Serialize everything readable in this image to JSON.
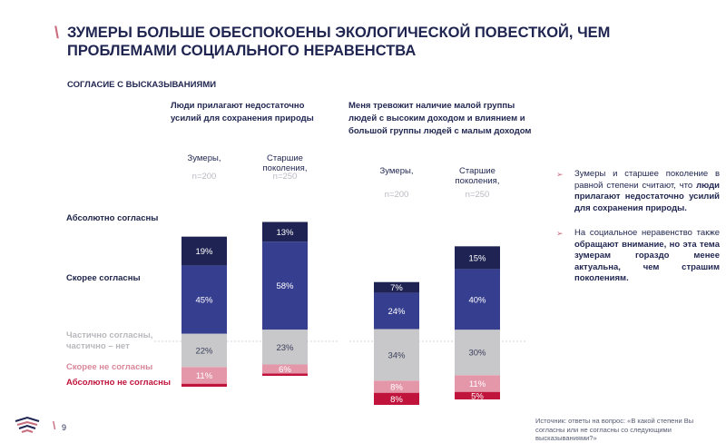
{
  "header": {
    "title": "ЗУМЕРЫ БОЛЬШЕ ОБЕСПОКОЕНЫ ЭКОЛОГИЧЕСКОЙ ПОВЕСТКОЙ, ЧЕМ ПРОБЛЕМАМИ СОЦИАЛЬНОГО НЕРАВЕНСТВА",
    "subtitle": "СОГЛАСИЕ С ВЫСКАЗЫВАНИЯМИ"
  },
  "row_labels": [
    "Абсолютно согласны",
    "Скорее согласны",
    "Частично согласны, частично – нет",
    "Скорее не согласны",
    "Абсолютно не согласны"
  ],
  "colors": {
    "absolutely_agree": "#1e2353",
    "rather_agree": "#363e8f",
    "partially": "#c8c8ca",
    "rather_disagree": "#e597aa",
    "absolutely_disagree": "#c0143c",
    "label_partially": "#b8b8bc",
    "label_rather_disagree": "#d9879b",
    "label_absolutely_disagree": "#c0143c"
  },
  "chart_data": [
    {
      "type": "bar",
      "stacked": true,
      "title": "Люди прилагают недостаточно усилий для сохранения природы",
      "categories": [
        "Зумеры,",
        "Старшие поколения,"
      ],
      "sample_sizes": [
        "n=200",
        "n=250"
      ],
      "series": [
        {
          "name": "Абсолютно согласны",
          "values": [
            19,
            13
          ],
          "labels": [
            "19%",
            "13%"
          ]
        },
        {
          "name": "Скорее согласны",
          "values": [
            45,
            58
          ],
          "labels": [
            "45%",
            "58%"
          ]
        },
        {
          "name": "Частично согласны, частично – нет",
          "values": [
            22,
            23
          ],
          "labels": [
            "22%",
            "23%"
          ]
        },
        {
          "name": "Скорее не согласны",
          "values": [
            11,
            6
          ],
          "labels": [
            "11%",
            "6%"
          ]
        },
        {
          "name": "Абсолютно не согласны",
          "values": [
            2,
            1
          ],
          "labels": [
            "",
            ""
          ]
        }
      ]
    },
    {
      "type": "bar",
      "stacked": true,
      "title": "Меня тревожит наличие малой группы людей с высоким доходом и влиянием и большой группы людей с малым доходом",
      "categories": [
        "Зумеры,",
        "Старшие поколения,"
      ],
      "sample_sizes": [
        "n=200",
        "n=250"
      ],
      "series": [
        {
          "name": "Абсолютно согласны",
          "values": [
            7,
            15
          ],
          "labels": [
            "7%",
            "15%"
          ]
        },
        {
          "name": "Скорее согласны",
          "values": [
            24,
            40
          ],
          "labels": [
            "24%",
            "40%"
          ]
        },
        {
          "name": "Частично согласны, частично – нет",
          "values": [
            34,
            30
          ],
          "labels": [
            "34%",
            "30%"
          ]
        },
        {
          "name": "Скорее не согласны",
          "values": [
            8,
            11
          ],
          "labels": [
            "8%",
            "11%"
          ]
        },
        {
          "name": "Абсолютно не согласны",
          "values": [
            8,
            5
          ],
          "labels": [
            "8%",
            "5%"
          ]
        }
      ]
    }
  ],
  "notes": [
    {
      "text_plain": "Зумеры и старшее поколение в равной степени считают, что ",
      "text_bold": "люди прилагают недостаточно усилий для сохранения природы."
    },
    {
      "text_plain_1": "На социальное неравенство также ",
      "text_bold": "обращают внимание, но эта тема зумерам гораздо менее актуальна, чем страшим поколениям."
    }
  ],
  "footer": {
    "page_number": "9",
    "source": "Источник: ответы на вопрос: «В какой степени Вы согласны или не согласны со следующими высказываниями?»"
  }
}
